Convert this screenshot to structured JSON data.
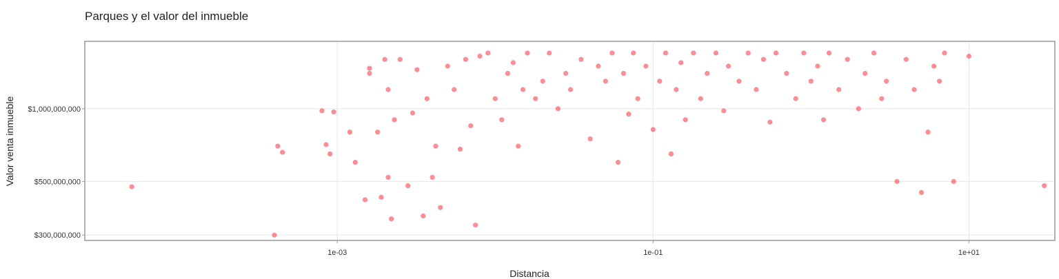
{
  "chart_data": {
    "type": "scatter",
    "title": "Parques y el valor del inmueble",
    "xlabel": "Distancia",
    "ylabel": "Valor venta inmueble",
    "x_scale": "log10",
    "y_scale": "log10",
    "xlim": [
      2.52e-05,
      35
    ],
    "ylim": [
      285000000,
      1900000000
    ],
    "x_ticks": [
      {
        "value": 0.001,
        "label": "1e-03"
      },
      {
        "value": 0.1,
        "label": "1e-01"
      },
      {
        "value": 10,
        "label": "1e+01"
      }
    ],
    "y_ticks": [
      {
        "value": 300000000,
        "label": "$300,000,000"
      },
      {
        "value": 500000000,
        "label": "$500,000,000"
      },
      {
        "value": 1000000000,
        "label": "$1,000,000,000"
      }
    ],
    "grid": true,
    "marker_color": "#ff0015",
    "marker_opacity": 0.45,
    "x": [
      5e-05,
      0.0004,
      0.00045,
      0.00042,
      0.0008,
      0.00085,
      0.0009,
      0.00095,
      0.0012,
      0.0013,
      0.0015,
      0.0016,
      0.0016,
      0.0018,
      0.0019,
      0.002,
      0.0021,
      0.0021,
      0.0022,
      0.0023,
      0.0025,
      0.0028,
      0.003,
      0.0032,
      0.0035,
      0.0037,
      0.004,
      0.0042,
      0.0045,
      0.005,
      0.0055,
      0.006,
      0.0065,
      0.007,
      0.0075,
      0.008,
      0.009,
      0.01,
      0.011,
      0.012,
      0.013,
      0.014,
      0.015,
      0.016,
      0.018,
      0.02,
      0.022,
      0.025,
      0.028,
      0.03,
      0.035,
      0.04,
      0.045,
      0.05,
      0.055,
      0.06,
      0.065,
      0.07,
      0.075,
      0.08,
      0.09,
      0.1,
      0.11,
      0.12,
      0.13,
      0.14,
      0.15,
      0.16,
      0.18,
      0.2,
      0.22,
      0.25,
      0.28,
      0.3,
      0.35,
      0.4,
      0.45,
      0.5,
      0.55,
      0.6,
      0.7,
      0.8,
      0.9,
      1.0,
      1.1,
      1.2,
      1.3,
      1.5,
      1.7,
      2.0,
      2.2,
      2.5,
      2.8,
      3.0,
      3.5,
      4.0,
      4.5,
      5.0,
      5.5,
      6.0,
      6.5,
      7.0,
      8.0,
      10.0,
      30.0
    ],
    "y": [
      475000000,
      300000000,
      660000000,
      700000000,
      980000000,
      710000000,
      650000000,
      970000000,
      800000000,
      600000000,
      420000000,
      1400000000,
      1470000000,
      800000000,
      430000000,
      1600000000,
      1200000000,
      520000000,
      350000000,
      900000000,
      1600000000,
      480000000,
      960000000,
      1450000000,
      360000000,
      1100000000,
      520000000,
      700000000,
      390000000,
      1500000000,
      1200000000,
      680000000,
      1600000000,
      850000000,
      330000000,
      1650000000,
      1700000000,
      1100000000,
      900000000,
      1400000000,
      1550000000,
      700000000,
      1200000000,
      1700000000,
      1100000000,
      1300000000,
      1700000000,
      1000000000,
      1400000000,
      1200000000,
      1600000000,
      750000000,
      1500000000,
      1300000000,
      1700000000,
      600000000,
      1400000000,
      950000000,
      1700000000,
      1100000000,
      1500000000,
      820000000,
      1300000000,
      1700000000,
      650000000,
      1200000000,
      1550000000,
      900000000,
      1700000000,
      1100000000,
      1400000000,
      1700000000,
      980000000,
      1500000000,
      1300000000,
      1700000000,
      1200000000,
      1600000000,
      880000000,
      1700000000,
      1400000000,
      1100000000,
      1700000000,
      1300000000,
      1500000000,
      900000000,
      1700000000,
      1200000000,
      1600000000,
      1000000000,
      1400000000,
      1700000000,
      1100000000,
      1300000000,
      500000000,
      1600000000,
      1200000000,
      450000000,
      800000000,
      1500000000,
      1300000000,
      1700000000,
      500000000,
      1650000000,
      480000000
    ]
  }
}
